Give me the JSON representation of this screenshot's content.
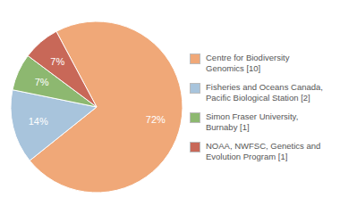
{
  "chart_data": {
    "type": "pie",
    "categories": [
      "Centre for Biodiversity\nGenomics [10]",
      "Fisheries and Oceans Canada,\nPacific Biological Station [2]",
      "Simon Fraser University,\nBurnaby [1]",
      "NOAA, NWFSC, Genetics and\nEvolution Program [1]"
    ],
    "values": [
      72,
      14,
      7,
      7
    ],
    "value_labels": [
      "72%",
      "14%",
      "7%",
      "7%"
    ],
    "colors": [
      "#F0A878",
      "#A8C4DC",
      "#8DB870",
      "#C86858"
    ],
    "data_labels": true,
    "legend": "right"
  }
}
